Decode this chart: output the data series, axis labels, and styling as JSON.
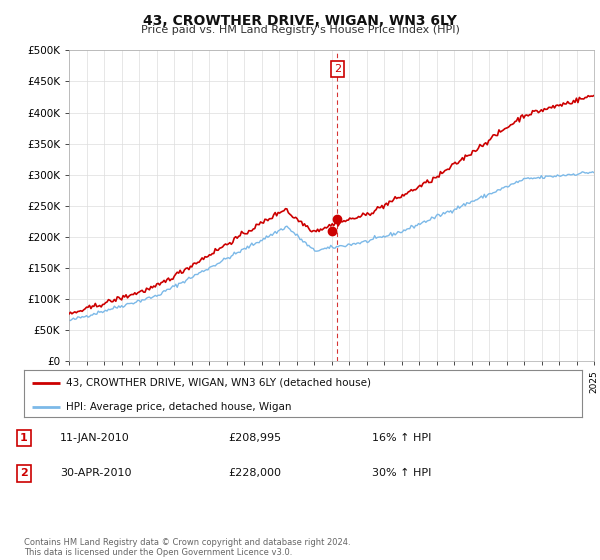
{
  "title": "43, CROWTHER DRIVE, WIGAN, WN3 6LY",
  "subtitle": "Price paid vs. HM Land Registry's House Price Index (HPI)",
  "ylim": [
    0,
    500000
  ],
  "yticks": [
    0,
    50000,
    100000,
    150000,
    200000,
    250000,
    300000,
    350000,
    400000,
    450000,
    500000
  ],
  "ytick_labels": [
    "£0",
    "£50K",
    "£100K",
    "£150K",
    "£200K",
    "£250K",
    "£300K",
    "£350K",
    "£400K",
    "£450K",
    "£500K"
  ],
  "hpi_color": "#7cb9e8",
  "price_color": "#cc0000",
  "vline_color": "#cc0000",
  "annotation_box_color": "#cc0000",
  "legend_label_price": "43, CROWTHER DRIVE, WIGAN, WN3 6LY (detached house)",
  "legend_label_hpi": "HPI: Average price, detached house, Wigan",
  "transaction1_label": "1",
  "transaction1_date": "11-JAN-2010",
  "transaction1_price": "£208,995",
  "transaction1_hpi": "16% ↑ HPI",
  "transaction2_label": "2",
  "transaction2_date": "30-APR-2010",
  "transaction2_price": "£228,000",
  "transaction2_hpi": "30% ↑ HPI",
  "footer": "Contains HM Land Registry data © Crown copyright and database right 2024.\nThis data is licensed under the Open Government Licence v3.0.",
  "background_color": "#ffffff",
  "plot_bg_color": "#ffffff",
  "grid_color": "#dddddd",
  "t1_x": 2010.03,
  "t1_y": 208995,
  "t2_x": 2010.33,
  "t2_y": 228000,
  "xlim": [
    1995,
    2025
  ],
  "xticks": [
    1995,
    1996,
    1997,
    1998,
    1999,
    2000,
    2001,
    2002,
    2003,
    2004,
    2005,
    2006,
    2007,
    2008,
    2009,
    2010,
    2011,
    2012,
    2013,
    2014,
    2015,
    2016,
    2017,
    2018,
    2019,
    2020,
    2021,
    2022,
    2023,
    2024,
    2025
  ]
}
